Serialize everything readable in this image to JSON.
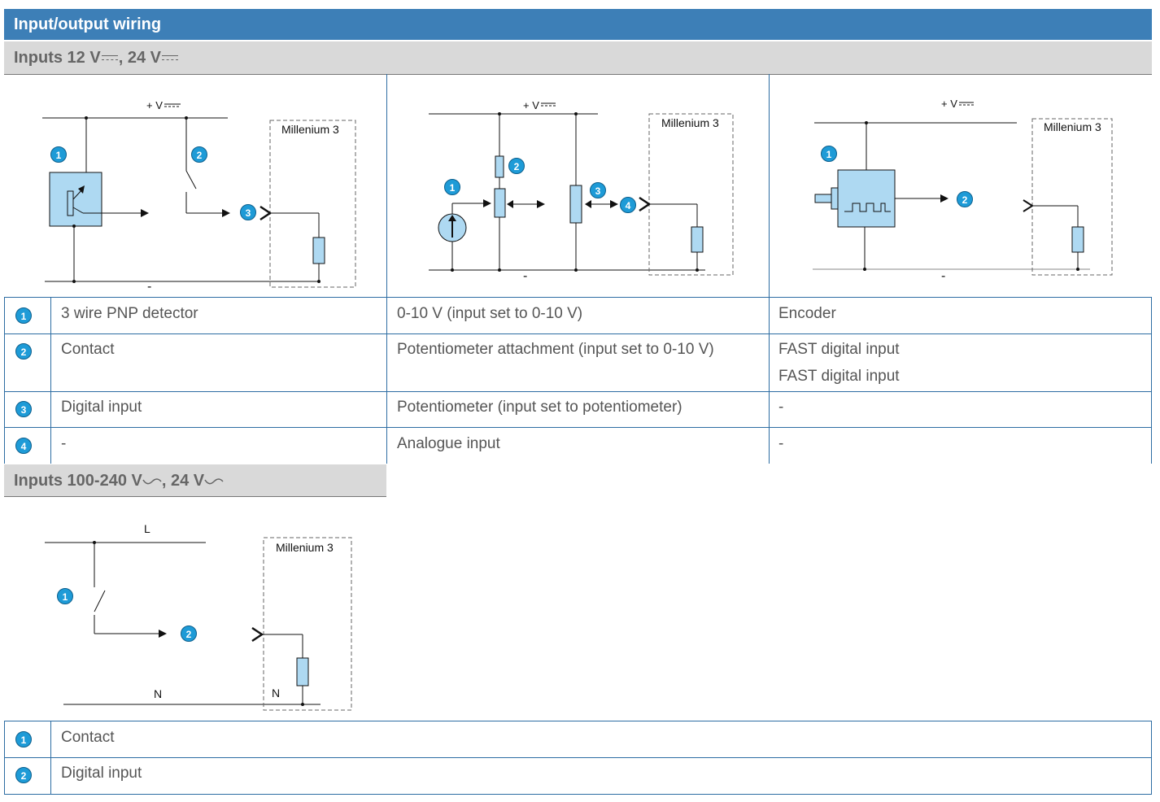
{
  "title": "Input/output wiring",
  "section1": {
    "label_a": "Inputs 12 V",
    "label_sep": ", 24 V",
    "diagrams": {
      "supply_label": "+ V",
      "module_label": "Millenium 3",
      "minus_label": "-"
    },
    "rows": [
      {
        "num": "1",
        "c1": "3 wire PNP detector",
        "c2": "0-10 V (input set to 0-10 V)",
        "c3": [
          "Encoder"
        ]
      },
      {
        "num": "2",
        "c1": "Contact",
        "c2": "Potentiometer attachment (input set to 0-10 V)",
        "c3": [
          "FAST digital input",
          "FAST digital input"
        ]
      },
      {
        "num": "3",
        "c1": "Digital input",
        "c2": "Potentiometer (input set to potentiometer)",
        "c3": [
          "-"
        ]
      },
      {
        "num": "4",
        "c1": "-",
        "c2": "Analogue input",
        "c3": [
          "-"
        ]
      }
    ]
  },
  "section2": {
    "label_a": "Inputs 100-240 V",
    "label_sep": ", 24 V",
    "diagram": {
      "line_label": "L",
      "neutral_label": "N",
      "neutral_label_inner": "N",
      "module_label": "Millenium 3"
    },
    "rows": [
      {
        "num": "1",
        "label": "Contact"
      },
      {
        "num": "2",
        "label": "Digital input"
      }
    ]
  },
  "colors": {
    "title_bar": "#3d7fb7",
    "section_bar": "#d9d9d9",
    "component_fill": "#aed9f2",
    "badge": "#1e9bd7",
    "grid_line": "#2d6da3"
  }
}
